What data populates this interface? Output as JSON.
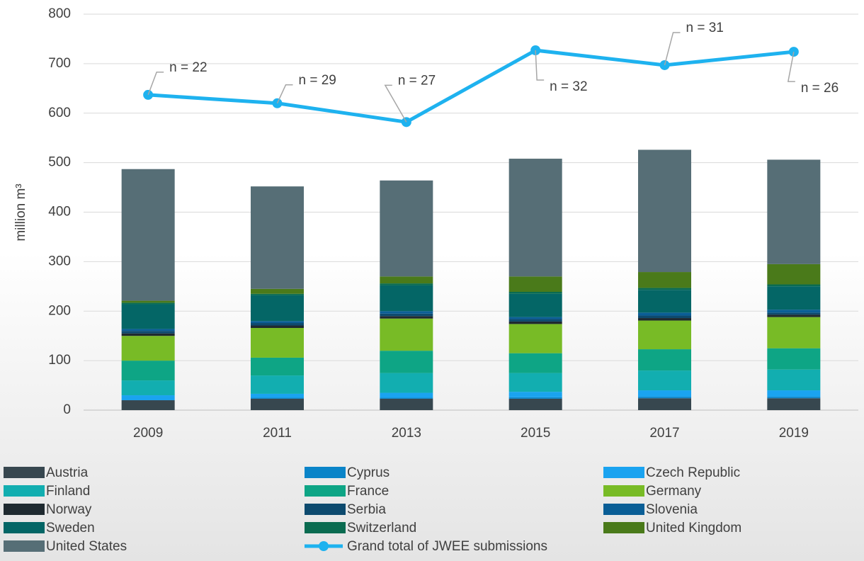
{
  "chart_data": {
    "type": "stacked-bar-line",
    "categories": [
      "2009",
      "2011",
      "2013",
      "2015",
      "2017",
      "2019"
    ],
    "y_axis_label": "million m³",
    "ylim": [
      0,
      800
    ],
    "yticks": [
      0,
      100,
      200,
      300,
      400,
      500,
      600,
      700,
      800
    ],
    "grid": true,
    "series": [
      {
        "name": "Austria",
        "color": "#37474f",
        "values": [
          20,
          23,
          23,
          23,
          24,
          24
        ]
      },
      {
        "name": "Cyprus",
        "color": "#0a84c8",
        "values": [
          0,
          2,
          2,
          3,
          3,
          3
        ]
      },
      {
        "name": "Czech Republic",
        "color": "#1aa3f0",
        "values": [
          10,
          8,
          10,
          11,
          13,
          13
        ]
      },
      {
        "name": "Finland",
        "color": "#12aeb0",
        "values": [
          30,
          37,
          40,
          38,
          40,
          42
        ]
      },
      {
        "name": "France",
        "color": "#0ea585",
        "values": [
          40,
          36,
          45,
          40,
          43,
          43
        ]
      },
      {
        "name": "Germany",
        "color": "#78bb26",
        "values": [
          50,
          60,
          65,
          59,
          58,
          63
        ]
      },
      {
        "name": "Norway",
        "color": "#1f2a30",
        "values": [
          5,
          5,
          5,
          5,
          5,
          5
        ]
      },
      {
        "name": "Serbia",
        "color": "#0d4a6e",
        "values": [
          5,
          5,
          5,
          5,
          5,
          4
        ]
      },
      {
        "name": "Slovenia",
        "color": "#0a5e96",
        "values": [
          4,
          4,
          5,
          4,
          6,
          6
        ]
      },
      {
        "name": "Sweden",
        "color": "#046666",
        "values": [
          50,
          52,
          52,
          47,
          46,
          47
        ]
      },
      {
        "name": "Switzerland",
        "color": "#0a6b50",
        "values": [
          3,
          3,
          4,
          4,
          4,
          4
        ]
      },
      {
        "name": "United Kingdom",
        "color": "#4a7a1a",
        "values": [
          4,
          10,
          14,
          31,
          32,
          41
        ]
      },
      {
        "name": "United States",
        "color": "#566e76",
        "values": [
          266,
          207,
          194,
          238,
          247,
          211
        ]
      },
      {
        "name": "Grand total of JWEE submissions",
        "type": "line",
        "color": "#1eb2ef",
        "values": [
          637,
          620,
          582,
          727,
          697,
          724
        ],
        "annotations": [
          "n = 22",
          "n = 29",
          "n = 27",
          "n = 32",
          "n = 31",
          "n = 26"
        ]
      }
    ]
  }
}
